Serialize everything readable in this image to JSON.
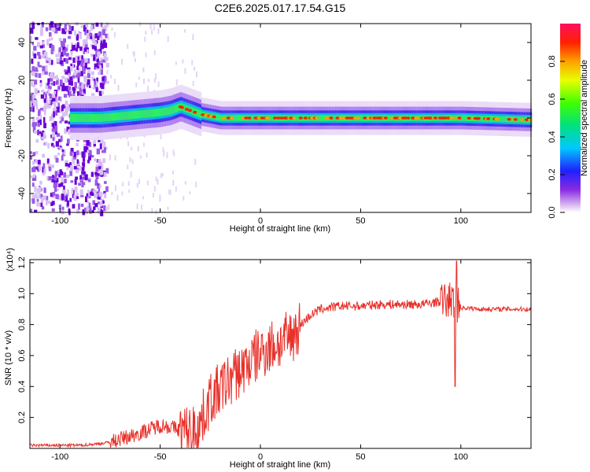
{
  "title": "C2E6.2025.017.17.54.G15",
  "colors": {
    "spectrogram_low": "#8a2be2",
    "snr_line": "#e8302a"
  },
  "chart_data": [
    {
      "type": "heatmap",
      "xlabel": "Height of straight line (km)",
      "ylabel": "Frequency (Hz)",
      "xlim": [
        -115,
        135
      ],
      "ylim": [
        -50,
        50
      ],
      "x_ticks": [
        -100,
        -50,
        0,
        50,
        100
      ],
      "y_ticks": [
        -40,
        -20,
        0,
        20,
        40
      ],
      "colorbar": {
        "label": "Normalized spectral amplitude",
        "range": [
          0.0,
          1.0
        ],
        "ticks": [
          "0.0",
          "0.2",
          "0.4",
          "0.6",
          "0.8"
        ]
      },
      "ridge": {
        "description_points_x": [
          -90,
          -80,
          -70,
          -60,
          -50,
          -45,
          -40,
          -35,
          -30,
          -25,
          -20,
          -10,
          0,
          20,
          50,
          100,
          135
        ],
        "frequency_hz": [
          0,
          0,
          1,
          2,
          3,
          4,
          6,
          4,
          2,
          1,
          0,
          0,
          0,
          0,
          0,
          0,
          -1
        ]
      },
      "grid": false,
      "legend": "colorbar-right"
    },
    {
      "type": "line",
      "ylabel": "SNR (10 * v/v)",
      "xlabel": "Height of straight line (km)",
      "exponent_label": "(x10⁴)",
      "xlim": [
        -115,
        135
      ],
      "ylim": [
        0,
        1.22
      ],
      "x_ticks": [
        -100,
        -50,
        0,
        50,
        100
      ],
      "y_ticks": [
        "0.2",
        "0.4",
        "0.6",
        "0.8",
        "1.0",
        "1.2"
      ],
      "series": [
        {
          "x": [
            -115,
            -100,
            -90,
            -80,
            -75,
            -70,
            -60,
            -50,
            -45,
            -40,
            -35,
            -30,
            -25,
            -20,
            -15,
            -10,
            -5,
            0,
            5,
            10,
            15,
            20,
            25,
            30,
            40,
            50,
            60,
            70,
            80,
            90,
            95,
            100,
            110,
            120,
            135
          ],
          "y": [
            0.02,
            0.02,
            0.02,
            0.03,
            0.04,
            0.06,
            0.1,
            0.15,
            0.14,
            0.12,
            0.1,
            0.16,
            0.32,
            0.38,
            0.45,
            0.5,
            0.56,
            0.62,
            0.66,
            0.68,
            0.72,
            0.8,
            0.86,
            0.9,
            0.92,
            0.92,
            0.93,
            0.93,
            0.93,
            0.95,
            0.96,
            0.91,
            0.9,
            0.9,
            0.9
          ]
        }
      ],
      "grid": false
    }
  ]
}
